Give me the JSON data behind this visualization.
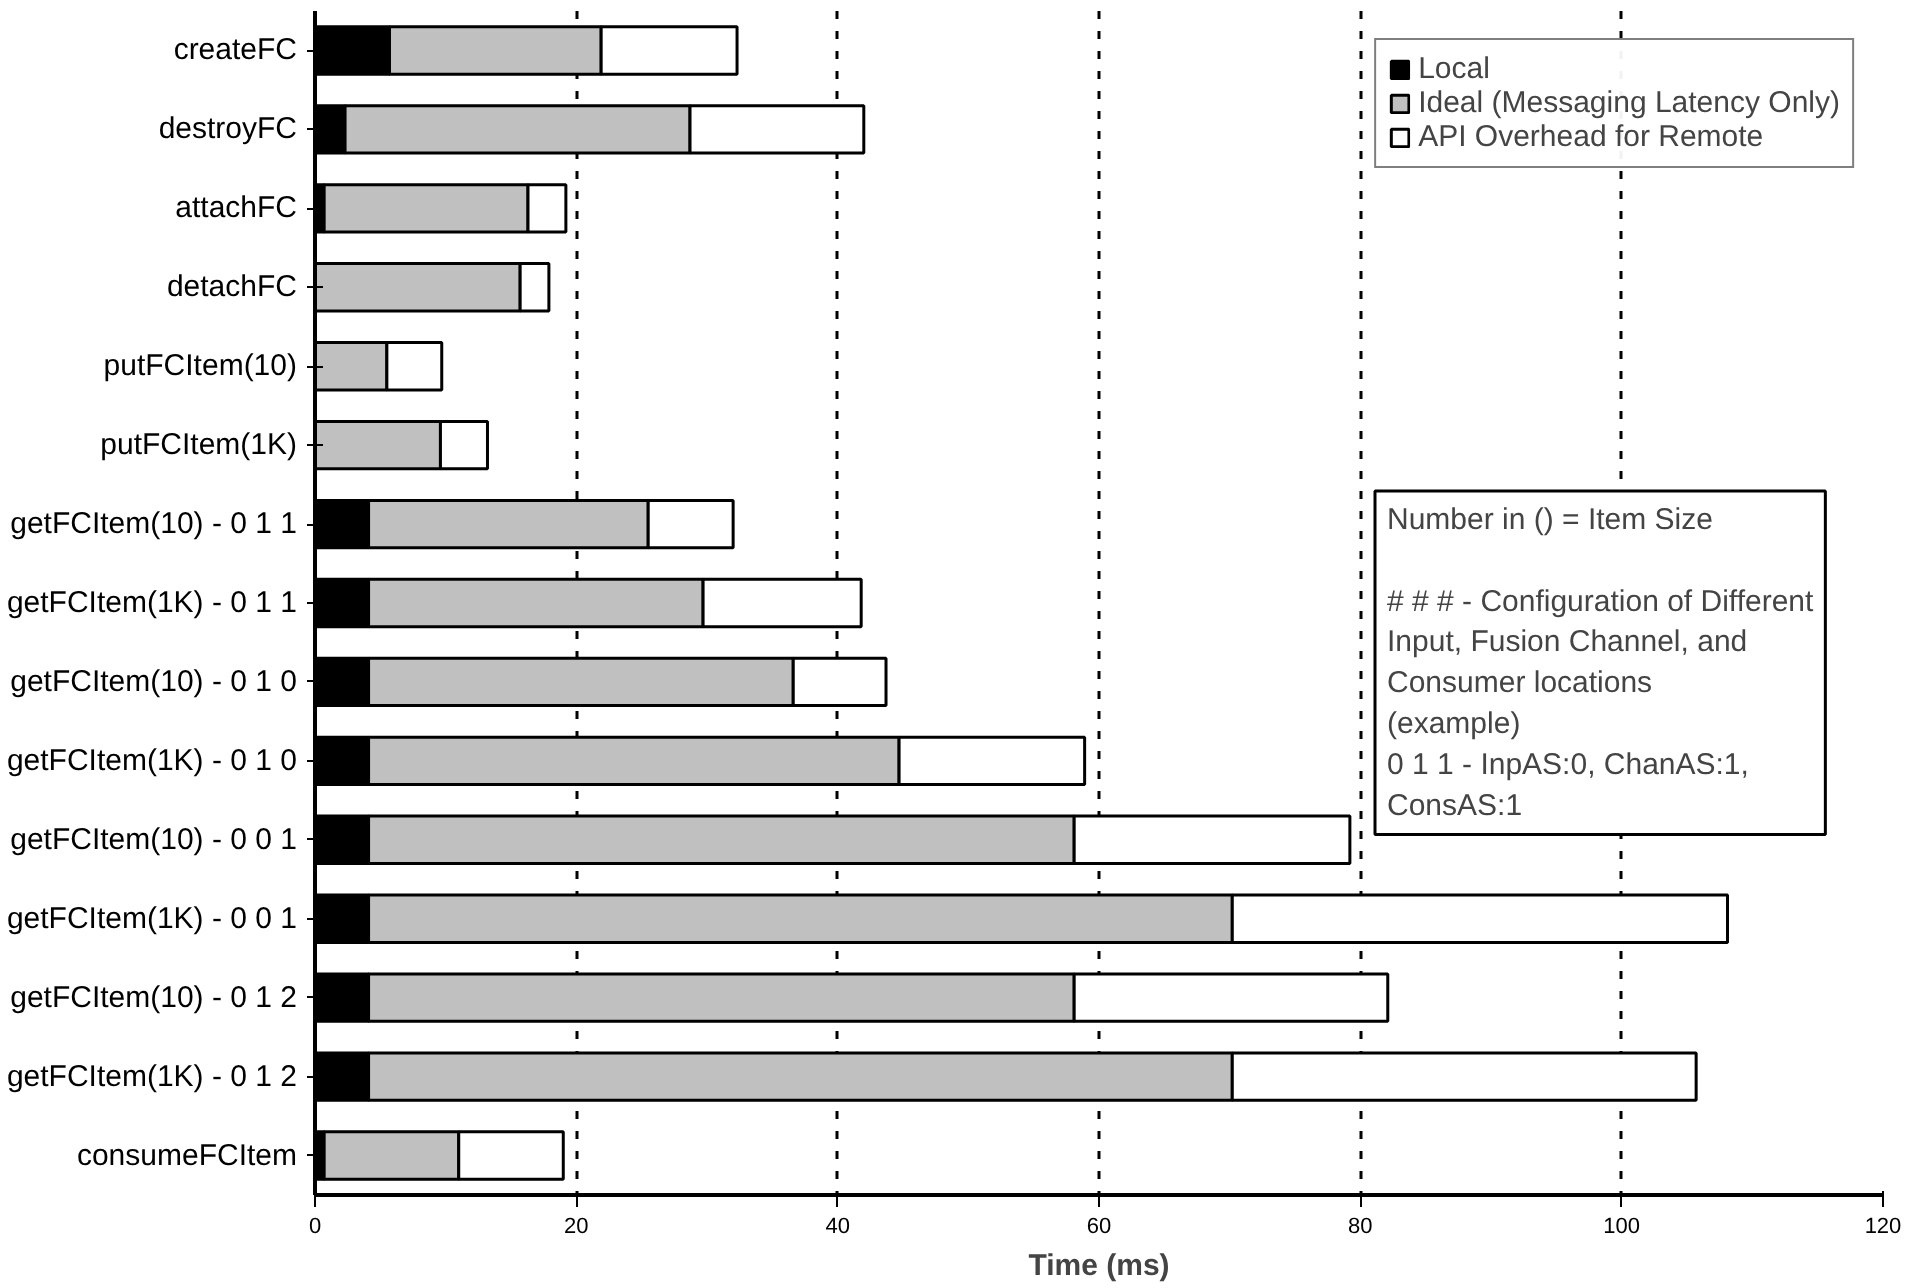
{
  "chart_data": {
    "type": "bar",
    "orientation": "horizontal",
    "stacked": true,
    "xlabel": "Time (ms)",
    "categories": [
      "createFC",
      "destroyFC",
      "attachFC",
      "detachFC",
      "putFCItem(10)",
      "putFCItem(1K)",
      "getFCItem(10) - 0 1 1",
      "getFCItem(1K) - 0 1 1",
      "getFCItem(10) - 0 1 0",
      "getFCItem(1K) - 0 1 0",
      "getFCItem(10) - 0 0 1",
      "getFCItem(1K) - 0 0 1",
      "getFCItem(10) - 0 1 2",
      "getFCItem(1K) - 0 1 2",
      "consumeFCItem"
    ],
    "series": [
      {
        "name": "Local",
        "color": "#000000",
        "values": [
          5.7,
          2.3,
          0.7,
          null,
          null,
          null,
          4.1,
          4.1,
          4.1,
          4.1,
          4.1,
          4.1,
          4.1,
          4.1,
          0.7
        ]
      },
      {
        "name": "Ideal (Messaging Latency Only)",
        "color": "#c0c0c0",
        "values": [
          16.2,
          26.4,
          15.6,
          15.7,
          5.5,
          9.6,
          21.4,
          25.6,
          32.5,
          40.6,
          54.0,
          66.1,
          54.0,
          66.1,
          10.3
        ]
      },
      {
        "name": "API Overhead for Remote",
        "color": "#ffffff",
        "values": [
          10.4,
          13.3,
          2.9,
          2.2,
          4.2,
          3.6,
          6.5,
          12.1,
          7.1,
          14.2,
          21.1,
          37.9,
          24.0,
          35.5,
          8.0
        ]
      }
    ],
    "xlim": [
      0,
      120
    ],
    "xticks": [
      0,
      20,
      40,
      60,
      80,
      100,
      120
    ],
    "grid": "x",
    "legend": "top right",
    "annotations": [
      "Number in () = Item Size\n\n# # # - Configuration of Different\nInput,  Fusion Channel, and\nConsumer locations\n(example)\n0 1 1 - InpAS:0, ChanAS:1,\nConsAS:1"
    ]
  }
}
